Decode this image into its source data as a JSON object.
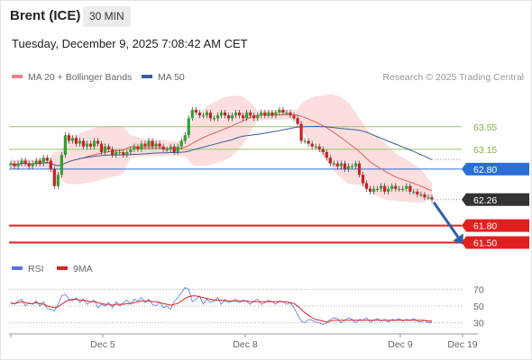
{
  "header": {
    "title": "Brent (ICE)",
    "timeframe": "30 MIN"
  },
  "timestamp": "Tuesday, December 9, 2025 7:08:42 AM CET",
  "legend": {
    "ma20_label": "MA 20 + Bollinger Bands",
    "ma50_label": "MA 50",
    "credit": "Research © 2025 Trading Central",
    "rsi_label": "RSI",
    "ma9_label": "9MA"
  },
  "colors": {
    "bollinger": "#f5a0a0",
    "ma50": "#3a5f9a",
    "resistance": "#99c46a",
    "pivot": "#2a6ed8",
    "support": "#e02020",
    "current": "#333333",
    "candle_up": "#30a030",
    "candle_down": "#c82020",
    "rsi": "#5577dd",
    "rsi_ma": "#dd2222",
    "arrow": "#2f5fa8"
  },
  "chart_data": [
    {
      "type": "candlestick",
      "title": "Brent (ICE)",
      "timeframe": "30 MIN",
      "x_ticks": [
        "Dec 5",
        "Dec 8",
        "Dec 9",
        "Dec 19"
      ],
      "y_range": [
        61.3,
        64.2
      ],
      "closes": [
        62.9,
        62.85,
        62.9,
        62.95,
        62.9,
        62.85,
        62.9,
        62.95,
        62.9,
        63.0,
        62.95,
        62.8,
        62.5,
        62.7,
        63.05,
        63.4,
        63.3,
        63.35,
        63.25,
        63.3,
        63.2,
        63.25,
        63.2,
        63.3,
        63.25,
        63.1,
        63.2,
        63.15,
        63.05,
        63.1,
        63.1,
        63.05,
        63.1,
        63.15,
        63.2,
        63.15,
        63.25,
        63.2,
        63.3,
        63.2,
        63.25,
        63.2,
        63.15,
        63.15,
        63.2,
        63.1,
        63.2,
        63.3,
        63.4,
        63.7,
        63.85,
        63.8,
        63.75,
        63.75,
        63.8,
        63.7,
        63.7,
        63.75,
        63.8,
        63.75,
        63.7,
        63.75,
        63.8,
        63.75,
        63.7,
        63.8,
        63.75,
        63.7,
        63.75,
        63.8,
        63.75,
        63.8,
        63.75,
        63.8,
        63.85,
        63.8,
        63.8,
        63.75,
        63.7,
        63.6,
        63.3,
        63.3,
        63.25,
        63.2,
        63.2,
        63.15,
        63.1,
        63.0,
        62.9,
        62.9,
        62.85,
        62.9,
        62.8,
        62.85,
        62.85,
        62.9,
        62.7,
        62.55,
        62.45,
        62.4,
        62.45,
        62.45,
        62.5,
        62.4,
        62.45,
        62.5,
        62.45,
        62.45,
        62.45,
        62.5,
        62.4,
        62.4,
        62.35,
        62.35,
        62.3,
        62.3,
        62.26
      ],
      "levels": [
        {
          "label": "63.55",
          "value": 63.55,
          "kind": "resistance"
        },
        {
          "label": "63.15",
          "value": 63.15,
          "kind": "resistance"
        },
        {
          "label": "62.80",
          "value": 62.8,
          "kind": "pivot"
        },
        {
          "label": "62.26",
          "value": 62.26,
          "kind": "current"
        },
        {
          "label": "61.80",
          "value": 61.8,
          "kind": "support"
        },
        {
          "label": "61.50",
          "value": 61.5,
          "kind": "support"
        }
      ],
      "indicators": [
        "MA 20 + Bollinger Bands",
        "MA 50"
      ],
      "forecast": {
        "from": 62.26,
        "to": 61.5,
        "direction": "down"
      }
    },
    {
      "type": "line",
      "series": [
        {
          "name": "RSI",
          "values": [
            55,
            52,
            56,
            58,
            50,
            54,
            52,
            56,
            50,
            55,
            47,
            46,
            44,
            52,
            62,
            64,
            58,
            56,
            60,
            54,
            58,
            52,
            55,
            57,
            48,
            52,
            50,
            54,
            48,
            55,
            50,
            54,
            57,
            52,
            58,
            56,
            60,
            54,
            58,
            52,
            50,
            55,
            48,
            50,
            46,
            55,
            60,
            66,
            72,
            70,
            55,
            58,
            62,
            52,
            58,
            54,
            56,
            60,
            52,
            58,
            54,
            56,
            58,
            54,
            57,
            55,
            52,
            56,
            58,
            52,
            54,
            57,
            55,
            52,
            56,
            55,
            52,
            54,
            48,
            40,
            32,
            30,
            34,
            33,
            31,
            30,
            28,
            30,
            34,
            36,
            35,
            30,
            33,
            36,
            34,
            30,
            34,
            33,
            36,
            31,
            33,
            35,
            32,
            34,
            31,
            34,
            33,
            35,
            32,
            34,
            33,
            35,
            32,
            31,
            33,
            30,
            31
          ]
        },
        {
          "name": "9MA",
          "values": [
            53,
            53,
            54,
            55,
            54,
            53,
            53,
            54,
            53,
            52,
            50,
            49,
            48,
            49,
            52,
            55,
            57,
            58,
            58,
            57,
            57,
            56,
            55,
            55,
            54,
            53,
            52,
            52,
            51,
            52,
            52,
            52,
            53,
            53,
            54,
            55,
            56,
            56,
            56,
            55,
            55,
            54,
            53,
            52,
            51,
            52,
            53,
            56,
            59,
            61,
            62,
            62,
            61,
            60,
            59,
            58,
            57,
            57,
            57,
            56,
            56,
            56,
            56,
            56,
            56,
            56,
            55,
            55,
            55,
            55,
            55,
            55,
            55,
            55,
            55,
            55,
            55,
            54,
            53,
            50,
            46,
            42,
            39,
            36,
            34,
            33,
            32,
            31,
            32,
            33,
            33,
            33,
            33,
            33,
            33,
            33,
            33,
            33,
            33,
            33,
            33,
            33,
            33,
            33,
            33,
            33,
            33,
            33,
            33,
            33,
            33,
            33,
            33,
            33,
            33,
            32,
            32
          ]
        }
      ],
      "y_ticks": [
        70,
        50,
        30
      ],
      "ylim": [
        20,
        80
      ]
    }
  ]
}
